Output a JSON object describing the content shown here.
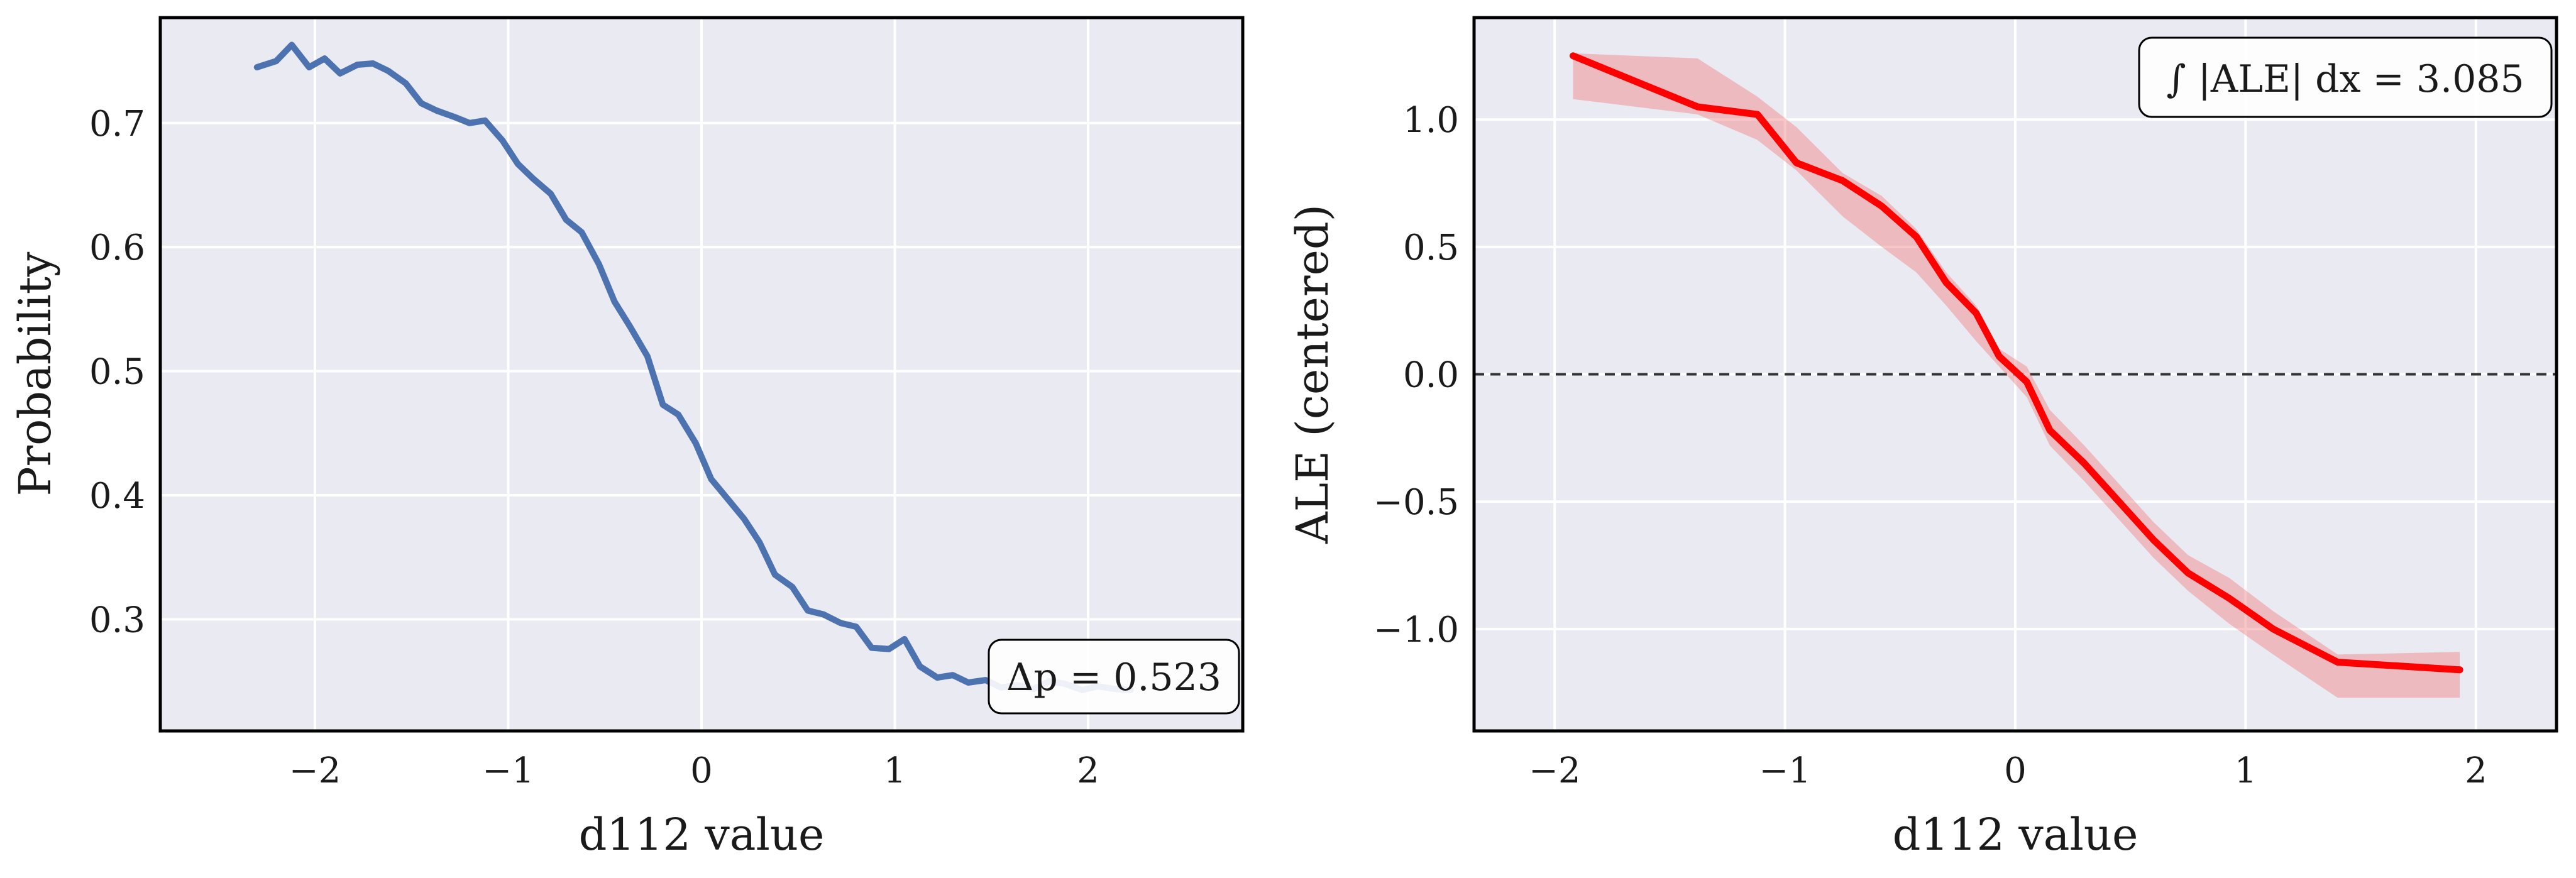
{
  "chart_data": [
    {
      "type": "line",
      "title": "",
      "xlabel": "d112 value",
      "ylabel": "Probability",
      "xlim": [
        -2.8,
        2.8
      ],
      "ylim": [
        0.21,
        0.785
      ],
      "xticks": [
        -2,
        -1,
        0,
        1,
        2
      ],
      "xtick_labels": [
        "−2",
        "−1",
        "0",
        "1",
        "2"
      ],
      "yticks": [
        0.3,
        0.4,
        0.5,
        0.6,
        0.7
      ],
      "ytick_labels": [
        "0.3",
        "0.4",
        "0.5",
        "0.6",
        "0.7"
      ],
      "grid": true,
      "colors": {
        "background": "#eaeaf2",
        "line": "#4c72b0",
        "grid": "#ffffff",
        "frame": "#000000"
      },
      "series": [
        {
          "x": [
            -2.3,
            -2.2,
            -2.12,
            -2.03,
            -1.95,
            -1.87,
            -1.78,
            -1.7,
            -1.62,
            -1.53,
            -1.45,
            -1.37,
            -1.28,
            -1.2,
            -1.12,
            -1.03,
            -0.95,
            -0.87,
            -0.78,
            -0.7,
            -0.62,
            -0.53,
            -0.45,
            -0.37,
            -0.28,
            -0.2,
            -0.12,
            -0.03,
            0.05,
            0.13,
            0.22,
            0.3,
            0.38,
            0.47,
            0.55,
            0.63,
            0.72,
            0.8,
            0.88,
            0.97,
            1.05,
            1.13,
            1.22,
            1.3,
            1.38,
            1.47,
            1.55,
            1.63,
            1.72,
            1.8,
            1.88,
            1.97,
            2.05,
            2.13,
            2.22
          ],
          "y": [
            0.745,
            0.75,
            0.763,
            0.745,
            0.752,
            0.74,
            0.747,
            0.748,
            0.742,
            0.732,
            0.716,
            0.71,
            0.705,
            0.7,
            0.702,
            0.686,
            0.667,
            0.655,
            0.643,
            0.622,
            0.612,
            0.586,
            0.556,
            0.536,
            0.512,
            0.473,
            0.465,
            0.442,
            0.413,
            0.398,
            0.381,
            0.362,
            0.336,
            0.326,
            0.307,
            0.304,
            0.297,
            0.294,
            0.277,
            0.276,
            0.284,
            0.262,
            0.253,
            0.255,
            0.249,
            0.251,
            0.245,
            0.247,
            0.244,
            0.25,
            0.248,
            0.243,
            0.246,
            0.244,
            0.243
          ]
        }
      ],
      "annotation": {
        "text": "Δp = 0.523",
        "position": "bottom-right"
      }
    },
    {
      "type": "line",
      "title": "",
      "xlabel": "d112 value",
      "ylabel": "ALE (centered)",
      "xlim": [
        -2.35,
        2.35
      ],
      "ylim": [
        -1.4,
        1.4
      ],
      "xticks": [
        -2,
        -1,
        0,
        1,
        2
      ],
      "xtick_labels": [
        "−2",
        "−1",
        "0",
        "1",
        "2"
      ],
      "yticks": [
        -1.0,
        -0.5,
        0.0,
        0.5,
        1.0
      ],
      "ytick_labels": [
        "−1.0",
        "−0.5",
        "0.0",
        "0.5",
        "1.0"
      ],
      "grid": true,
      "reference_line": {
        "y": 0,
        "style": "dashed"
      },
      "colors": {
        "background": "#eaeaf2",
        "line": "#ff0000",
        "band": "#f08080",
        "grid": "#ffffff",
        "frame": "#000000"
      },
      "series": [
        {
          "x": [
            -1.92,
            -1.38,
            -1.12,
            -0.95,
            -0.75,
            -0.58,
            -0.43,
            -0.3,
            -0.17,
            -0.07,
            0.05,
            0.15,
            0.3,
            0.45,
            0.6,
            0.75,
            0.93,
            1.12,
            1.4,
            1.93
          ],
          "y": [
            1.25,
            1.05,
            1.02,
            0.83,
            0.76,
            0.66,
            0.54,
            0.36,
            0.24,
            0.07,
            -0.03,
            -0.22,
            -0.35,
            -0.5,
            -0.65,
            -0.78,
            -0.88,
            -1.0,
            -1.13,
            -1.16
          ],
          "y_lower": [
            1.08,
            1.02,
            0.92,
            0.8,
            0.62,
            0.5,
            0.4,
            0.27,
            0.13,
            0.03,
            -0.09,
            -0.28,
            -0.42,
            -0.57,
            -0.72,
            -0.85,
            -0.98,
            -1.1,
            -1.27,
            -1.27
          ],
          "y_upper": [
            1.26,
            1.24,
            1.09,
            0.97,
            0.79,
            0.7,
            0.57,
            0.4,
            0.27,
            0.1,
            0.03,
            -0.14,
            -0.28,
            -0.43,
            -0.58,
            -0.71,
            -0.8,
            -0.93,
            -1.1,
            -1.09
          ]
        }
      ],
      "annotation": {
        "text": "∫ |ALE| dx = 3.085",
        "position": "top-right"
      }
    }
  ]
}
